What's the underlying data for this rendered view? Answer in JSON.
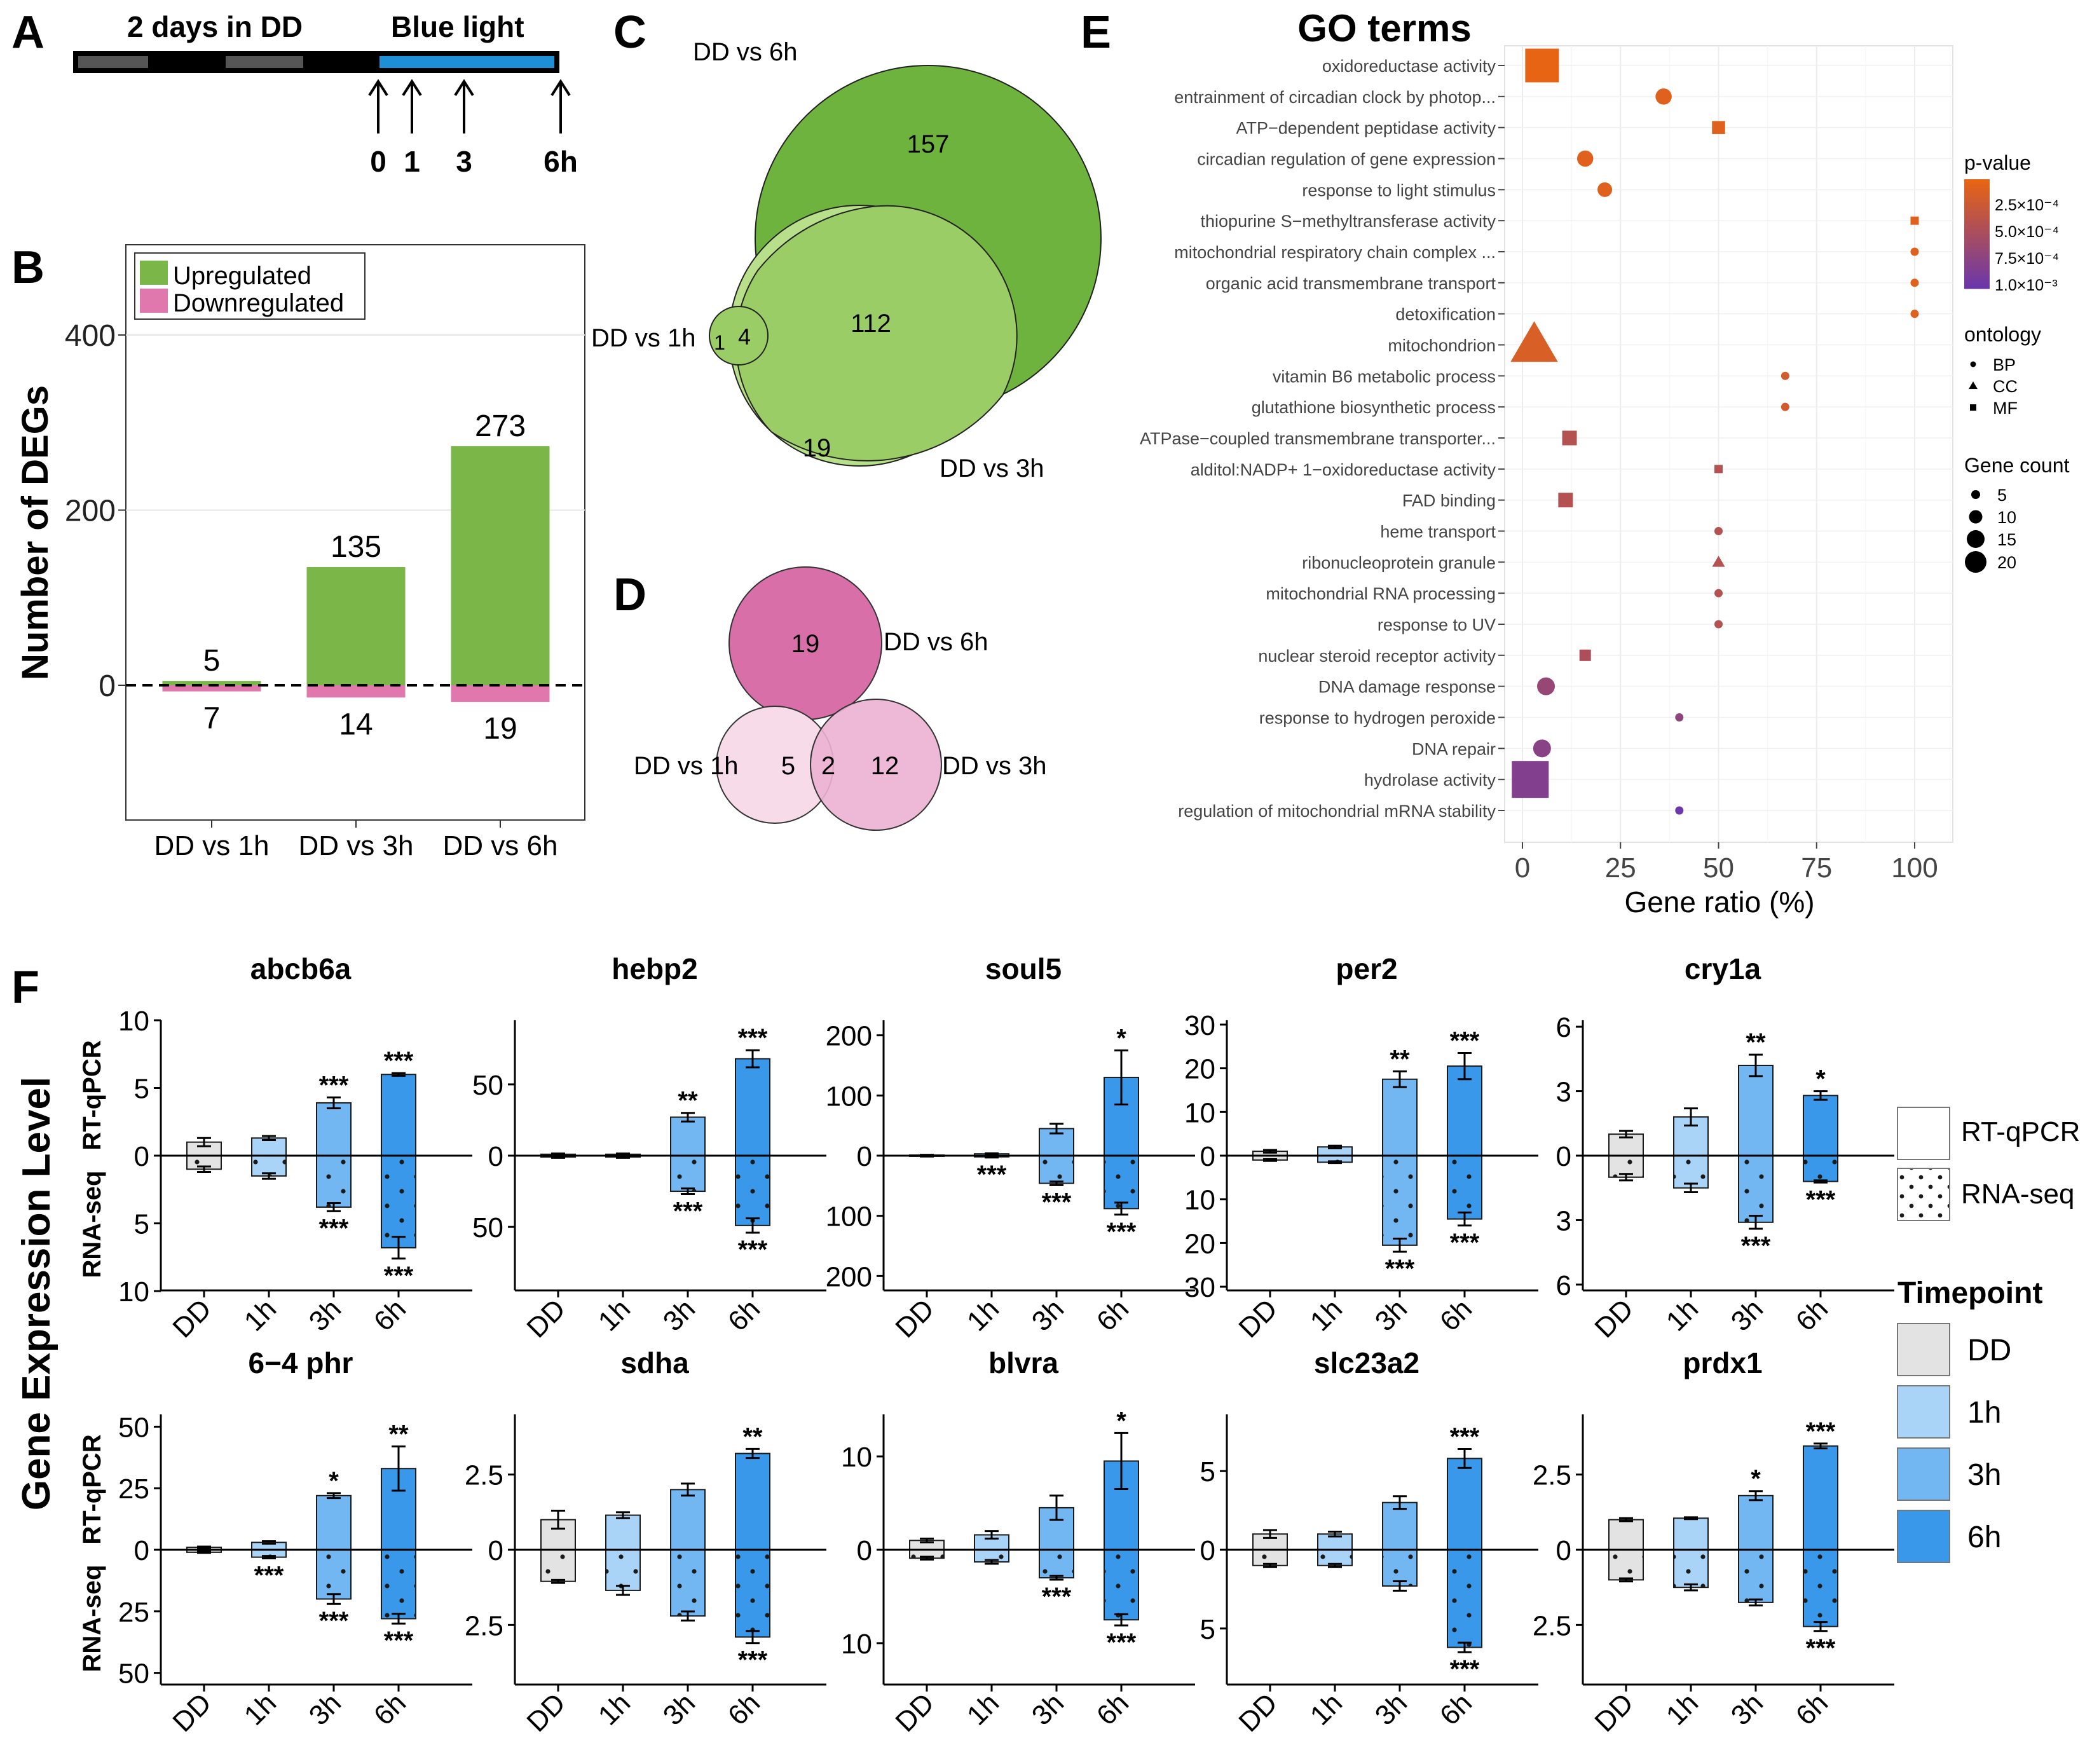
{
  "colors": {
    "up": "#7ab648",
    "down": "#e178ad",
    "venn_up_dark": "#6fb33f",
    "venn_up_mid": "#9bcd66",
    "venn_up_light": "#b8e08a",
    "venn_down_dark": "#d86fa8",
    "venn_down_mid": "#ebb1d1",
    "venn_down_light": "#f8dbe9",
    "t_dd": "#e3e3e3",
    "t_1h": "#a9d3f7",
    "t_3h": "#72b6f2",
    "t_6h": "#3a98ea",
    "timeline_gray": "#555555",
    "timeline_blue": "#1e8fd4"
  },
  "panelA": {
    "letter": "A",
    "label_dd": "2 days in DD",
    "label_blue": "Blue light",
    "arrows": [
      "0",
      "1",
      "3",
      "6h"
    ]
  },
  "panelB": {
    "letter": "B",
    "legend": [
      "Upregulated",
      "Downregulated"
    ],
    "chart_data": {
      "type": "bar",
      "ylabel": "Number of DEGs",
      "categories": [
        "DD vs 1h",
        "DD vs 3h",
        "DD vs 6h"
      ],
      "series": [
        {
          "name": "Upregulated",
          "values": [
            5,
            135,
            273
          ]
        },
        {
          "name": "Downregulated",
          "values": [
            7,
            14,
            19
          ]
        }
      ],
      "yticks": [
        "0",
        "200",
        "400"
      ],
      "ylim": [
        -150,
        500
      ]
    }
  },
  "panelC": {
    "letter": "C",
    "labels": {
      "six": "DD vs 6h",
      "one": "DD vs 1h",
      "three": "DD vs 3h"
    },
    "counts": {
      "six_only": "157",
      "six_three": "112",
      "one_six_three": "4",
      "one_only": "1",
      "three_only": "19"
    }
  },
  "panelD": {
    "letter": "D",
    "labels": {
      "six": "DD vs 6h",
      "one": "DD vs 1h",
      "three": "DD vs 3h"
    },
    "counts": {
      "six": "19",
      "one": "5",
      "one_three": "2",
      "three": "12"
    }
  },
  "panelE": {
    "letter": "E",
    "title": "GO terms",
    "xlabel": "Gene ratio (%)",
    "xticks": [
      "0",
      "25",
      "50",
      "75",
      "100"
    ],
    "legend_pvalue_title": "p-value",
    "legend_pvalue_labels": [
      "2.5×10⁻⁴",
      "5.0×10⁻⁴",
      "7.5×10⁻⁴",
      "1.0×10⁻³"
    ],
    "legend_ontology_title": "ontology",
    "legend_ontology_labels": [
      "BP",
      "CC",
      "MF"
    ],
    "legend_count_title": "Gene count",
    "legend_count_labels": [
      "5",
      "10",
      "15",
      "20"
    ],
    "chart_data": {
      "type": "scatter",
      "xlabel": "Gene ratio (%)",
      "xlim": [
        0,
        100
      ],
      "points": [
        {
          "term": "oxidoreductase activity",
          "ratio": 5,
          "ont": "MF",
          "count": 18,
          "p": 0.00015
        },
        {
          "term": "entrainment of circadian clock by photop...",
          "ratio": 36,
          "ont": "BP",
          "count": 7,
          "p": 0.0002
        },
        {
          "term": "ATP−dependent peptidase activity",
          "ratio": 50,
          "ont": "MF",
          "count": 5,
          "p": 0.0002
        },
        {
          "term": "circadian regulation of gene expression",
          "ratio": 16,
          "ont": "BP",
          "count": 7,
          "p": 0.0002
        },
        {
          "term": "response to light stimulus",
          "ratio": 21,
          "ont": "BP",
          "count": 6,
          "p": 0.0002
        },
        {
          "term": "thiopurine S−methyltransferase activity",
          "ratio": 100,
          "ont": "MF",
          "count": 2,
          "p": 0.0002
        },
        {
          "term": "mitochondrial respiratory chain complex ...",
          "ratio": 100,
          "ont": "BP",
          "count": 2,
          "p": 0.0002
        },
        {
          "term": "organic acid transmembrane transport",
          "ratio": 100,
          "ont": "BP",
          "count": 2,
          "p": 0.0002
        },
        {
          "term": "detoxification",
          "ratio": 100,
          "ont": "BP",
          "count": 2,
          "p": 0.0002
        },
        {
          "term": "mitochondrion",
          "ratio": 3,
          "ont": "CC",
          "count": 16,
          "p": 0.00025
        },
        {
          "term": "vitamin B6 metabolic process",
          "ratio": 67,
          "ont": "BP",
          "count": 2,
          "p": 0.0003
        },
        {
          "term": "glutathione biosynthetic process",
          "ratio": 67,
          "ont": "BP",
          "count": 2,
          "p": 0.0003
        },
        {
          "term": "ATPase−coupled transmembrane transporter...",
          "ratio": 12,
          "ont": "MF",
          "count": 6,
          "p": 0.0005
        },
        {
          "term": "alditol:NADP+ 1−oxidoreductase activity",
          "ratio": 50,
          "ont": "MF",
          "count": 2,
          "p": 0.0005
        },
        {
          "term": "FAD binding",
          "ratio": 11,
          "ont": "MF",
          "count": 6,
          "p": 0.0005
        },
        {
          "term": "heme transport",
          "ratio": 50,
          "ont": "BP",
          "count": 2,
          "p": 0.0005
        },
        {
          "term": "ribonucleoprotein granule",
          "ratio": 50,
          "ont": "CC",
          "count": 2,
          "p": 0.0005
        },
        {
          "term": "mitochondrial RNA processing",
          "ratio": 50,
          "ont": "BP",
          "count": 2,
          "p": 0.0005
        },
        {
          "term": "response to UV",
          "ratio": 50,
          "ont": "BP",
          "count": 2,
          "p": 0.0005
        },
        {
          "term": "nuclear steroid receptor activity",
          "ratio": 16,
          "ont": "MF",
          "count": 4,
          "p": 0.00055
        },
        {
          "term": "DNA damage response",
          "ratio": 6,
          "ont": "BP",
          "count": 8,
          "p": 0.0007
        },
        {
          "term": "response to hydrogen peroxide",
          "ratio": 40,
          "ont": "BP",
          "count": 2,
          "p": 0.00075
        },
        {
          "term": "DNA repair",
          "ratio": 5,
          "ont": "BP",
          "count": 8,
          "p": 0.0008
        },
        {
          "term": "hydrolase activity",
          "ratio": 2,
          "ont": "MF",
          "count": 20,
          "p": 0.00085
        },
        {
          "term": "regulation of mitochondrial mRNA stability",
          "ratio": 40,
          "ont": "BP",
          "count": 2,
          "p": 0.001
        }
      ]
    }
  },
  "panelF": {
    "letter": "F",
    "ylabel_main": "Gene Expression Level",
    "ylabel_top": "RT-qPCR",
    "ylabel_bottom": "RNA-seq",
    "xticks": [
      "DD",
      "1h",
      "3h",
      "6h"
    ],
    "legend_method": [
      "RT-qPCR",
      "RNA-seq"
    ],
    "legend_timepoint_title": "Timepoint",
    "legend_timepoint": [
      "DD",
      "1h",
      "3h",
      "6h"
    ],
    "chart_data": [
      {
        "gene": "abcb6a",
        "max": 10,
        "ticks": [
          "10",
          "5",
          "0",
          "5",
          "10"
        ],
        "tickvals": [
          10,
          5,
          0,
          -5,
          -10
        ],
        "up": [
          1.0,
          1.3,
          3.9,
          6.0
        ],
        "upErr": [
          0.3,
          0.15,
          0.4,
          0.1
        ],
        "upSig": [
          "",
          "",
          "***",
          "***"
        ],
        "down": [
          1.0,
          1.5,
          3.8,
          6.8
        ],
        "downErr": [
          0.2,
          0.2,
          0.3,
          0.8
        ],
        "downSig": [
          "",
          "",
          "***",
          "***"
        ]
      },
      {
        "gene": "hebp2",
        "max": 95,
        "ticks": [
          "50",
          "0",
          "50"
        ],
        "tickvals": [
          50,
          0,
          -50
        ],
        "up": [
          1,
          1,
          27,
          68
        ],
        "upErr": [
          0.5,
          0.5,
          3,
          6
        ],
        "upSig": [
          "",
          "",
          "**",
          "***"
        ],
        "down": [
          1,
          1,
          25,
          49
        ],
        "downErr": [
          0.5,
          0.5,
          2,
          5
        ],
        "downSig": [
          "",
          "",
          "***",
          "***"
        ]
      },
      {
        "gene": "soul5",
        "max": 225,
        "ticks": [
          "200",
          "100",
          "0",
          "100",
          "200"
        ],
        "tickvals": [
          200,
          100,
          0,
          -100,
          -200
        ],
        "up": [
          1,
          3,
          45,
          130
        ],
        "upErr": [
          0.5,
          1,
          8,
          45
        ],
        "upSig": [
          "",
          "",
          "",
          "*"
        ],
        "down": [
          1,
          2,
          46,
          88
        ],
        "downErr": [
          0.5,
          1,
          3,
          10
        ],
        "downSig": [
          "",
          "***",
          "***",
          "***"
        ]
      },
      {
        "gene": "per2",
        "max": 31,
        "ticks": [
          "30",
          "20",
          "10",
          "0",
          "10",
          "20",
          "30"
        ],
        "tickvals": [
          30,
          20,
          10,
          0,
          -10,
          -20,
          -30
        ],
        "up": [
          1.0,
          2.0,
          17.5,
          20.5
        ],
        "upErr": [
          0.3,
          0.3,
          1.8,
          3.0
        ],
        "upSig": [
          "",
          "",
          "**",
          "***"
        ],
        "down": [
          1.0,
          1.5,
          20.5,
          14.5
        ],
        "downErr": [
          0.2,
          0.2,
          1.5,
          1.5
        ],
        "downSig": [
          "",
          "",
          "***",
          "***"
        ]
      },
      {
        "gene": "cry1a",
        "max": 6.3,
        "ticks": [
          "6",
          "3",
          "0",
          "3",
          "6"
        ],
        "tickvals": [
          6,
          3,
          0,
          -3,
          -6
        ],
        "up": [
          1.0,
          1.8,
          4.2,
          2.8
        ],
        "upErr": [
          0.15,
          0.4,
          0.5,
          0.2
        ],
        "upSig": [
          "",
          "",
          "**",
          "*"
        ],
        "down": [
          1.0,
          1.5,
          3.1,
          1.2
        ],
        "downErr": [
          0.15,
          0.2,
          0.3,
          0.05
        ],
        "downSig": [
          "",
          "",
          "***",
          "***"
        ]
      },
      {
        "gene": "6−4 phr",
        "max": 55,
        "ticks": [
          "50",
          "25",
          "0",
          "25",
          "50"
        ],
        "tickvals": [
          50,
          25,
          0,
          -25,
          -50
        ],
        "up": [
          1.0,
          3.0,
          22.0,
          33.0
        ],
        "upErr": [
          0.3,
          0.5,
          1.0,
          9.0
        ],
        "upSig": [
          "",
          "",
          "*",
          "**"
        ],
        "down": [
          1.0,
          3.0,
          20.0,
          28.0
        ],
        "downErr": [
          0.3,
          0.5,
          2.0,
          2.0
        ],
        "downSig": [
          "",
          "***",
          "***",
          "***"
        ]
      },
      {
        "gene": "sdha",
        "max": 4.5,
        "ticks": [
          "2.5",
          "0",
          "2.5"
        ],
        "tickvals": [
          2.5,
          0,
          -2.5
        ],
        "up": [
          1.0,
          1.15,
          2.0,
          3.2
        ],
        "upErr": [
          0.3,
          0.1,
          0.2,
          0.15
        ],
        "upSig": [
          "",
          "",
          "",
          "**"
        ],
        "down": [
          1.05,
          1.35,
          2.2,
          2.9
        ],
        "downErr": [
          0.05,
          0.15,
          0.15,
          0.2
        ],
        "downSig": [
          "",
          "",
          "",
          "***"
        ]
      },
      {
        "gene": "blvra",
        "max": 14.5,
        "ticks": [
          "10",
          "0",
          "10"
        ],
        "tickvals": [
          10,
          0,
          -10
        ],
        "up": [
          1.0,
          1.6,
          4.5,
          9.5
        ],
        "upErr": [
          0.2,
          0.4,
          1.3,
          3.0
        ],
        "upSig": [
          "",
          "",
          "",
          "*"
        ],
        "down": [
          0.9,
          1.3,
          3.0,
          7.5
        ],
        "downErr": [
          0.15,
          0.2,
          0.2,
          0.6
        ],
        "downSig": [
          "",
          "",
          "***",
          "***"
        ]
      },
      {
        "gene": "slc23a2",
        "max": 8.6,
        "ticks": [
          "5",
          "0",
          "5"
        ],
        "tickvals": [
          5,
          0,
          -5
        ],
        "up": [
          1.0,
          1.0,
          3.0,
          5.8
        ],
        "upErr": [
          0.25,
          0.15,
          0.4,
          0.6
        ],
        "upSig": [
          "",
          "",
          "",
          "***"
        ],
        "down": [
          1.0,
          1.0,
          2.3,
          6.2
        ],
        "downErr": [
          0.1,
          0.1,
          0.3,
          0.3
        ],
        "downSig": [
          "",
          "",
          "",
          "***"
        ]
      },
      {
        "gene": "prdx1",
        "max": 4.5,
        "ticks": [
          "2.5",
          "0",
          "2.5"
        ],
        "tickvals": [
          2.5,
          0,
          -2.5
        ],
        "up": [
          1.0,
          1.05,
          1.8,
          3.45
        ],
        "upErr": [
          0.05,
          0.03,
          0.15,
          0.08
        ],
        "upSig": [
          "",
          "",
          "*",
          "***"
        ],
        "down": [
          1.0,
          1.25,
          1.75,
          2.55
        ],
        "downErr": [
          0.05,
          0.1,
          0.1,
          0.15
        ],
        "downSig": [
          "",
          "",
          "",
          "***"
        ]
      }
    ]
  }
}
